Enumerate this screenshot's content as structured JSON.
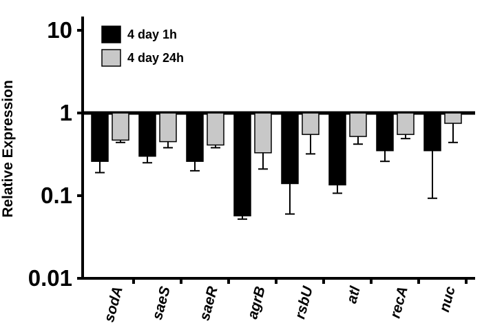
{
  "chart_data": {
    "type": "bar",
    "title": "",
    "xlabel": "",
    "ylabel": "Relative  Expression",
    "scale": "log",
    "baseline": 1,
    "ylim": [
      0.01,
      10
    ],
    "yticks": [
      {
        "value": 10,
        "label": "10"
      },
      {
        "value": 1,
        "label": "1"
      },
      {
        "value": 0.1,
        "label": "0.1"
      },
      {
        "value": 0.01,
        "label": "0.01"
      }
    ],
    "categories": [
      "sodA",
      "saeS",
      "saeR",
      "agrB",
      "rsbU",
      "atl",
      "recA",
      "nuc"
    ],
    "series": [
      {
        "name": "4 day 1h",
        "color": "#000000",
        "values": [
          0.26,
          0.3,
          0.26,
          0.057,
          0.14,
          0.135,
          0.35,
          0.35
        ],
        "errors": [
          0.19,
          0.25,
          0.2,
          0.052,
          0.06,
          0.107,
          0.26,
          0.093
        ]
      },
      {
        "name": "4 day 24h",
        "color": "#c8c8c8",
        "values": [
          0.47,
          0.45,
          0.41,
          0.33,
          0.55,
          0.52,
          0.55,
          0.75
        ],
        "errors": [
          0.44,
          0.38,
          0.38,
          0.21,
          0.32,
          0.42,
          0.49,
          0.44
        ]
      }
    ],
    "legend": {
      "position": "top-left"
    },
    "grid": false
  }
}
